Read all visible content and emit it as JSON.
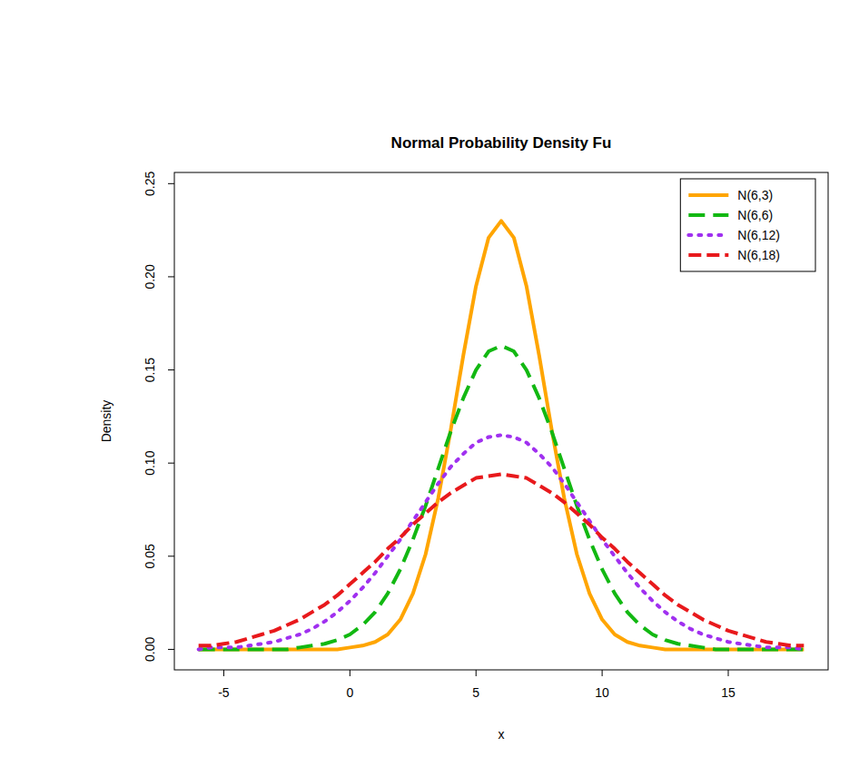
{
  "chart_data": {
    "type": "line",
    "title": "Normal Probability Density Fu",
    "x_label": "x",
    "y_label": "Density",
    "x": [
      -6,
      -5.5,
      -5,
      -4.5,
      -4,
      -3.5,
      -3,
      -2.5,
      -2,
      -1.5,
      -1,
      -0.5,
      0,
      0.5,
      1,
      1.5,
      2,
      2.5,
      3,
      3.5,
      4,
      4.5,
      5,
      5.5,
      6,
      6.5,
      7,
      7.5,
      8,
      8.5,
      9,
      9.5,
      10,
      10.5,
      11,
      11.5,
      12,
      12.5,
      13,
      13.5,
      14,
      14.5,
      15,
      15.5,
      16,
      16.5,
      17,
      17.5,
      18
    ],
    "series": [
      {
        "name": "N(6,3)",
        "color": "#ffa500",
        "line_style": "solid",
        "values": [
          0,
          0,
          0,
          0,
          0,
          0,
          0,
          0,
          0,
          0,
          0,
          0,
          0.001,
          0.002,
          0.004,
          0.008,
          0.016,
          0.03,
          0.051,
          0.081,
          0.118,
          0.158,
          0.195,
          0.221,
          0.23,
          0.221,
          0.195,
          0.158,
          0.118,
          0.081,
          0.051,
          0.03,
          0.016,
          0.008,
          0.004,
          0.002,
          0.001,
          0,
          0,
          0,
          0,
          0,
          0,
          0,
          0,
          0,
          0,
          0,
          0
        ]
      },
      {
        "name": "N(6,6)",
        "color": "#12b812",
        "line_style": "dashed",
        "values": [
          0,
          0,
          0,
          0,
          0,
          0,
          0,
          0,
          0.001,
          0.002,
          0.003,
          0.005,
          0.008,
          0.013,
          0.02,
          0.03,
          0.043,
          0.059,
          0.077,
          0.097,
          0.117,
          0.135,
          0.15,
          0.16,
          0.163,
          0.16,
          0.15,
          0.135,
          0.117,
          0.097,
          0.077,
          0.059,
          0.043,
          0.03,
          0.02,
          0.013,
          0.008,
          0.005,
          0.003,
          0.002,
          0.001,
          0,
          0,
          0,
          0,
          0,
          0,
          0,
          0
        ]
      },
      {
        "name": "N(6,12)",
        "color": "#a030f0",
        "line_style": "dotted",
        "values": [
          0,
          0.001,
          0.001,
          0.001,
          0.002,
          0.003,
          0.004,
          0.006,
          0.008,
          0.011,
          0.015,
          0.02,
          0.026,
          0.033,
          0.041,
          0.05,
          0.059,
          0.069,
          0.079,
          0.089,
          0.098,
          0.105,
          0.111,
          0.114,
          0.115,
          0.114,
          0.111,
          0.105,
          0.098,
          0.089,
          0.079,
          0.069,
          0.059,
          0.05,
          0.041,
          0.033,
          0.026,
          0.02,
          0.015,
          0.011,
          0.008,
          0.006,
          0.004,
          0.003,
          0.002,
          0.001,
          0.001,
          0.001,
          0
        ]
      },
      {
        "name": "N(6,18)",
        "color": "#e8191c",
        "line_style": "longdash",
        "values": [
          0.002,
          0.002,
          0.003,
          0.004,
          0.006,
          0.008,
          0.01,
          0.013,
          0.016,
          0.02,
          0.024,
          0.029,
          0.035,
          0.041,
          0.047,
          0.054,
          0.06,
          0.067,
          0.073,
          0.079,
          0.084,
          0.088,
          0.092,
          0.093,
          0.094,
          0.093,
          0.092,
          0.088,
          0.084,
          0.079,
          0.073,
          0.067,
          0.06,
          0.054,
          0.047,
          0.041,
          0.035,
          0.029,
          0.024,
          0.02,
          0.016,
          0.013,
          0.01,
          0.008,
          0.006,
          0.004,
          0.003,
          0.002,
          0.002
        ]
      }
    ],
    "xlim": [
      -6.96,
      18.96
    ],
    "ylim": [
      -0.011,
      0.256
    ],
    "xticks": [
      -5,
      0,
      5,
      10,
      15
    ],
    "yticks": [
      {
        "value": 0,
        "label": "0.00"
      },
      {
        "value": 0.05,
        "label": "0.05"
      },
      {
        "value": 0.1,
        "label": "0.10"
      },
      {
        "value": 0.15,
        "label": "0.15"
      },
      {
        "value": 0.2,
        "label": "0.20"
      },
      {
        "value": 0.25,
        "label": "0.25"
      }
    ],
    "grid": false,
    "legend": "top-right"
  }
}
